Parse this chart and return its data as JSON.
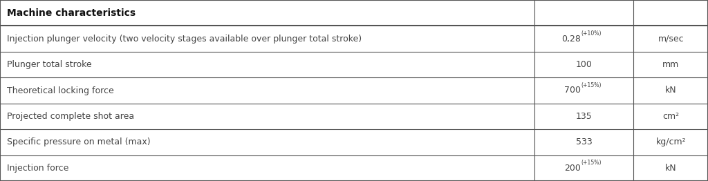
{
  "header": "Machine characteristics",
  "rows": [
    {
      "label": "Injection plunger velocity (two velocity stages available over plunger total stroke)",
      "value_main": "0,28",
      "value_sup": "(+10%)",
      "unit": "m/sec"
    },
    {
      "label": "Plunger total stroke",
      "value_main": "100",
      "value_sup": "",
      "unit": "mm"
    },
    {
      "label": "Theoretical locking force",
      "value_main": "700",
      "value_sup": "(+15%)",
      "unit": "kN"
    },
    {
      "label": "Projected complete shot area",
      "value_main": "135",
      "value_sup": "",
      "unit": "cm²"
    },
    {
      "label": "Specific pressure on metal (max)",
      "value_main": "533",
      "value_sup": "",
      "unit": "kg/cm²"
    },
    {
      "label": "Injection force",
      "value_main": "200",
      "value_sup": "(+15%)",
      "unit": "kN"
    }
  ],
  "col_splits": [
    0.755,
    0.895
  ],
  "header_bg": "#ffffff",
  "row_bg": "#ffffff",
  "border_color": "#555555",
  "text_color": "#444444",
  "header_text_color": "#111111",
  "font_size": 9.0,
  "header_font_size": 10.0,
  "fig_width": 10.24,
  "fig_height": 2.62,
  "dpi": 100
}
